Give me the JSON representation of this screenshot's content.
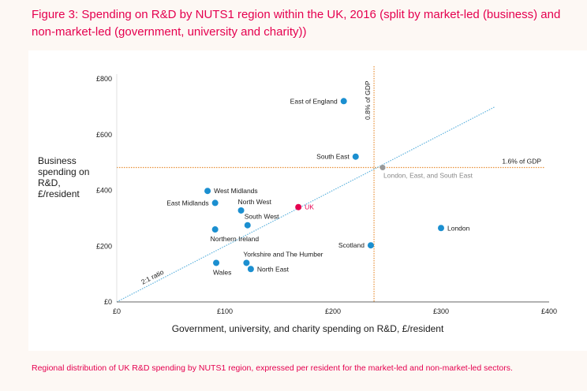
{
  "title": "Figure 3: Spending on R&D by NUTS1 region within the UK, 2016 (split by market-led (business) and non-market-led (government, university and charity))",
  "caption": "Regional distribution of UK R&D spending by NUTS1 region, expressed per resident for the market-led and non-market-led sectors.",
  "colors": {
    "title": "#e5004f",
    "point": "#1b8fd0",
    "uk_point": "#e5004f",
    "reference_point": "#999999",
    "gdp_line": "#e8913a",
    "ratio_line": "#5fb3de"
  },
  "chart_data": {
    "type": "scatter",
    "title": "Figure 3: Spending on R&D by NUTS1 region within the UK, 2016 (split by market-led (business) and non-market-led (government, university and charity))",
    "xlabel": "Government, university, and charity spending on R&D, £/resident",
    "ylabel": "Business spending on R&D, £/resident",
    "xlim": [
      0,
      400
    ],
    "ylim": [
      0,
      800
    ],
    "xticks": [
      {
        "value": 0,
        "label": "£0"
      },
      {
        "value": 100,
        "label": "£100"
      },
      {
        "value": 200,
        "label": "£200"
      },
      {
        "value": 300,
        "label": "£300"
      },
      {
        "value": 400,
        "label": "£400"
      }
    ],
    "yticks": [
      {
        "value": 0,
        "label": "£0"
      },
      {
        "value": 200,
        "label": "£200"
      },
      {
        "value": 400,
        "label": "£400"
      },
      {
        "value": 600,
        "label": "£600"
      },
      {
        "value": 800,
        "label": "£800"
      }
    ],
    "points": [
      {
        "name": "East of England",
        "x": 210,
        "y": 720,
        "anchor": "left"
      },
      {
        "name": "South East",
        "x": 221,
        "y": 521,
        "anchor": "left"
      },
      {
        "name": "West Midlands",
        "x": 84,
        "y": 398,
        "anchor": "right"
      },
      {
        "name": "East Midlands",
        "x": 91,
        "y": 355,
        "anchor": "left"
      },
      {
        "name": "North West",
        "x": 115,
        "y": 328,
        "anchor": "right-up"
      },
      {
        "name": "South West",
        "x": 121,
        "y": 275,
        "anchor": "right-up"
      },
      {
        "name": "Northern Ireland",
        "x": 91,
        "y": 260,
        "anchor": "right-down"
      },
      {
        "name": "Scotland",
        "x": 235,
        "y": 203,
        "anchor": "left"
      },
      {
        "name": "Yorkshire and The Humber",
        "x": 120,
        "y": 140,
        "anchor": "right-up"
      },
      {
        "name": "Wales",
        "x": 92,
        "y": 140,
        "anchor": "below"
      },
      {
        "name": "North East",
        "x": 124,
        "y": 118,
        "anchor": "right"
      },
      {
        "name": "London",
        "x": 300,
        "y": 265,
        "anchor": "right"
      },
      {
        "name": "UK",
        "x": 168,
        "y": 340,
        "anchor": "right",
        "highlight": true
      }
    ],
    "reference_point": {
      "name": "London, East, and South East",
      "x": 246,
      "y": 482
    },
    "gdp_lines": {
      "vertical": {
        "x": 238,
        "label": "0.8% of GDP"
      },
      "horizontal": {
        "y": 482,
        "label": "1.6% of GDP"
      }
    },
    "ratio_line": {
      "label": "2:1 ratio",
      "slope": 2,
      "x_end": 350
    }
  }
}
